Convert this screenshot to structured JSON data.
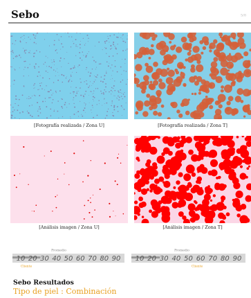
{
  "header": {
    "title": "Sebo",
    "page": "5/8"
  },
  "images": [
    {
      "caption": "[Fotografía realizada / Zona U]"
    },
    {
      "caption": "[Fotografía realizada / Zona T]"
    },
    {
      "caption": "[Análisis imagen / Zona U]"
    },
    {
      "caption": "[Análisis imagen / Zona T]"
    }
  ],
  "scales": [
    {
      "average_label": "Promedio",
      "client_label": "Cliente",
      "ticks": [
        10,
        20,
        30,
        40,
        50,
        60,
        70,
        80,
        90
      ]
    },
    {
      "average_label": "Promedio",
      "client_label": "Cliente",
      "ticks": [
        10,
        20,
        30,
        40,
        50,
        60,
        70,
        80,
        90
      ]
    }
  ],
  "results": {
    "title": "Sebo Resultados",
    "skin_type": "Tipo de piel : Combinación"
  }
}
